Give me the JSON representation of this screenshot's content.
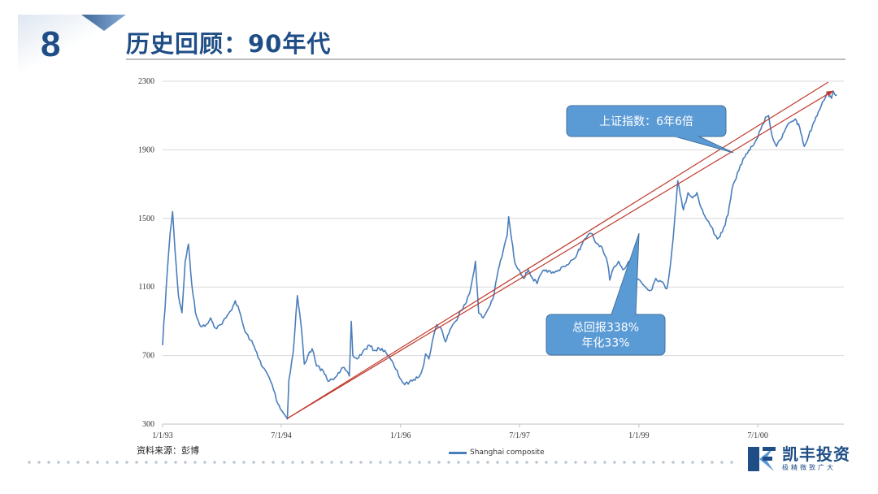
{
  "slide": {
    "number": "8",
    "title": "历史回顾：90年代",
    "source": "资料来源：彭博"
  },
  "logo": {
    "name": "凯丰投资",
    "slogan": "极精微致广大"
  },
  "colors": {
    "brand": "#1f4e86",
    "series": "#4a7ebb",
    "trend": "#c0392b",
    "callout": "#5b9bd5"
  },
  "chart_data": {
    "type": "line",
    "series": [
      {
        "name": "Shanghai composite",
        "points": [
          [
            "1993-01-01",
            760
          ],
          [
            "1993-01-18",
            1100
          ],
          [
            "1993-02-05",
            1420
          ],
          [
            "1993-02-16",
            1540
          ],
          [
            "1993-02-28",
            1300
          ],
          [
            "1993-03-15",
            1050
          ],
          [
            "1993-03-31",
            950
          ],
          [
            "1993-04-15",
            1250
          ],
          [
            "1993-04-30",
            1350
          ],
          [
            "1993-05-15",
            1120
          ],
          [
            "1993-06-01",
            950
          ],
          [
            "1993-06-20",
            880
          ],
          [
            "1993-07-15",
            870
          ],
          [
            "1993-08-10",
            920
          ],
          [
            "1993-09-01",
            860
          ],
          [
            "1993-09-25",
            880
          ],
          [
            "1993-10-20",
            920
          ],
          [
            "1993-11-10",
            960
          ],
          [
            "1993-12-01",
            1020
          ],
          [
            "1993-12-20",
            960
          ],
          [
            "1994-01-15",
            840
          ],
          [
            "1994-02-10",
            790
          ],
          [
            "1994-03-10",
            720
          ],
          [
            "1994-04-01",
            640
          ],
          [
            "1994-04-25",
            600
          ],
          [
            "1994-05-20",
            530
          ],
          [
            "1994-06-15",
            420
          ],
          [
            "1994-07-29",
            330
          ],
          [
            "1994-08-05",
            560
          ],
          [
            "1994-08-25",
            720
          ],
          [
            "1994-09-13",
            1050
          ],
          [
            "1994-09-30",
            880
          ],
          [
            "1994-10-15",
            650
          ],
          [
            "1994-11-01",
            700
          ],
          [
            "1994-11-20",
            740
          ],
          [
            "1994-12-10",
            640
          ],
          [
            "1995-01-10",
            610
          ],
          [
            "1995-02-01",
            550
          ],
          [
            "1995-02-20",
            560
          ],
          [
            "1995-03-20",
            600
          ],
          [
            "1995-04-10",
            630
          ],
          [
            "1995-05-10",
            580
          ],
          [
            "1995-05-19",
            900
          ],
          [
            "1995-05-26",
            700
          ],
          [
            "1995-06-15",
            680
          ],
          [
            "1995-07-10",
            720
          ],
          [
            "1995-08-10",
            760
          ],
          [
            "1995-09-01",
            730
          ],
          [
            "1995-09-25",
            740
          ],
          [
            "1995-10-20",
            730
          ],
          [
            "1995-11-15",
            680
          ],
          [
            "1995-12-10",
            620
          ],
          [
            "1996-01-05",
            555
          ],
          [
            "1996-01-20",
            530
          ],
          [
            "1996-02-10",
            545
          ],
          [
            "1996-03-01",
            560
          ],
          [
            "1996-03-20",
            570
          ],
          [
            "1996-04-10",
            620
          ],
          [
            "1996-04-25",
            710
          ],
          [
            "1996-05-10",
            680
          ],
          [
            "1996-05-25",
            780
          ],
          [
            "1996-06-15",
            880
          ],
          [
            "1996-07-05",
            860
          ],
          [
            "1996-07-25",
            780
          ],
          [
            "1996-08-15",
            850
          ],
          [
            "1996-09-10",
            900
          ],
          [
            "1996-10-01",
            960
          ],
          [
            "1996-10-25",
            1000
          ],
          [
            "1996-11-15",
            1070
          ],
          [
            "1996-12-10",
            1250
          ],
          [
            "1996-12-25",
            950
          ],
          [
            "1997-01-15",
            920
          ],
          [
            "1997-02-10",
            980
          ],
          [
            "1997-03-05",
            1050
          ],
          [
            "1997-03-25",
            1200
          ],
          [
            "1997-04-15",
            1300
          ],
          [
            "1997-05-05",
            1400
          ],
          [
            "1997-05-12",
            1510
          ],
          [
            "1997-05-25",
            1380
          ],
          [
            "1997-06-10",
            1240
          ],
          [
            "1997-06-30",
            1200
          ],
          [
            "1997-07-20",
            1150
          ],
          [
            "1997-08-10",
            1200
          ],
          [
            "1997-08-30",
            1150
          ],
          [
            "1997-09-20",
            1120
          ],
          [
            "1997-10-10",
            1180
          ],
          [
            "1997-11-01",
            1200
          ],
          [
            "1997-11-25",
            1180
          ],
          [
            "1997-12-20",
            1190
          ],
          [
            "1998-01-15",
            1220
          ],
          [
            "1998-02-10",
            1230
          ],
          [
            "1998-03-05",
            1260
          ],
          [
            "1998-03-25",
            1300
          ],
          [
            "1998-04-15",
            1350
          ],
          [
            "1998-05-10",
            1400
          ],
          [
            "1998-06-01",
            1410
          ],
          [
            "1998-06-15",
            1360
          ],
          [
            "1998-07-10",
            1340
          ],
          [
            "1998-08-10",
            1240
          ],
          [
            "1998-08-20",
            1140
          ],
          [
            "1998-09-10",
            1220
          ],
          [
            "1998-09-30",
            1250
          ],
          [
            "1998-10-20",
            1200
          ],
          [
            "1998-11-15",
            1250
          ],
          [
            "1998-12-10",
            1160
          ],
          [
            "1999-01-05",
            1140
          ],
          [
            "1999-02-01",
            1100
          ],
          [
            "1999-02-25",
            1080
          ],
          [
            "1999-03-20",
            1150
          ],
          [
            "1999-04-15",
            1130
          ],
          [
            "1999-05-10",
            1090
          ],
          [
            "1999-05-18",
            1150
          ],
          [
            "1999-06-01",
            1300
          ],
          [
            "1999-06-15",
            1500
          ],
          [
            "1999-06-29",
            1720
          ],
          [
            "1999-07-10",
            1640
          ],
          [
            "1999-07-25",
            1550
          ],
          [
            "1999-08-15",
            1650
          ],
          [
            "1999-09-05",
            1620
          ],
          [
            "1999-09-25",
            1650
          ],
          [
            "1999-10-15",
            1560
          ],
          [
            "1999-11-05",
            1500
          ],
          [
            "1999-12-01",
            1450
          ],
          [
            "1999-12-28",
            1380
          ],
          [
            "2000-01-20",
            1420
          ],
          [
            "2000-02-15",
            1520
          ],
          [
            "2000-03-10",
            1700
          ],
          [
            "2000-04-05",
            1780
          ],
          [
            "2000-04-25",
            1850
          ],
          [
            "2000-05-15",
            1880
          ],
          [
            "2000-06-05",
            1920
          ],
          [
            "2000-06-25",
            1960
          ],
          [
            "2000-07-15",
            2020
          ],
          [
            "2000-08-05",
            2090
          ],
          [
            "2000-08-20",
            2100
          ],
          [
            "2000-09-05",
            1980
          ],
          [
            "2000-09-25",
            1920
          ],
          [
            "2000-10-15",
            1960
          ],
          [
            "2000-11-05",
            2020
          ],
          [
            "2000-11-25",
            2060
          ],
          [
            "2000-12-20",
            2080
          ],
          [
            "2001-01-10",
            2030
          ],
          [
            "2001-01-31",
            1920
          ],
          [
            "2001-02-20",
            1980
          ],
          [
            "2001-03-15",
            2060
          ],
          [
            "2001-04-05",
            2120
          ],
          [
            "2001-04-25",
            2180
          ],
          [
            "2001-05-15",
            2230
          ],
          [
            "2001-06-05",
            2200
          ],
          [
            "2001-06-14",
            2240
          ],
          [
            "2001-06-30",
            2220
          ]
        ]
      }
    ],
    "trendlines": [
      {
        "from": [
          "1994-07-29",
          333
        ],
        "to": [
          "2001-06-14",
          2245
        ]
      },
      {
        "from": [
          "1994-07-29",
          333
        ],
        "to": [
          "2001-06-14",
          2245
        ]
      }
    ],
    "xlim": [
      "1993-01-01",
      "2001-08-01"
    ],
    "ylim": [
      300,
      2300
    ],
    "yticks": [
      300,
      700,
      1100,
      1500,
      1900,
      2300
    ],
    "xticks": [
      {
        "date": "1993-01-01",
        "label": "1/1/93"
      },
      {
        "date": "1994-07-01",
        "label": "7/1/94"
      },
      {
        "date": "1996-01-01",
        "label": "1/1/96"
      },
      {
        "date": "1997-07-01",
        "label": "7/1/97"
      },
      {
        "date": "1999-01-01",
        "label": "1/1/99"
      },
      {
        "date": "2000-07-01",
        "label": "7/1/00"
      }
    ],
    "grid": true,
    "legend_position": "bottom",
    "annotations": [
      {
        "lines": [
          "上证指数：6年6倍"
        ]
      },
      {
        "lines": [
          "总回报338%",
          "年化33%"
        ]
      }
    ]
  }
}
